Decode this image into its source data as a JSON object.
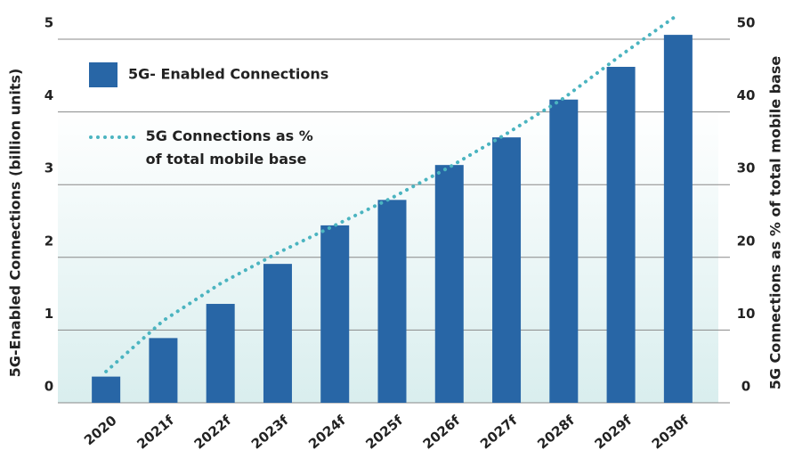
{
  "chart_data": {
    "type": "bar",
    "categories": [
      "2020",
      "2021f",
      "2022f",
      "2023f",
      "2024f",
      "2025f",
      "2026f",
      "2027f",
      "2028f",
      "2029f",
      "2030f"
    ],
    "series": [
      {
        "name": "5G- Enabled Connections",
        "type": "bar",
        "color": "#2866a6",
        "values": [
          0.36,
          0.89,
          1.36,
          1.91,
          2.44,
          2.79,
          3.27,
          3.65,
          4.17,
          4.62,
          5.06
        ]
      },
      {
        "name": "5G Connections as % of total mobile base",
        "type": "line",
        "axis": "y2",
        "color": "#4bb4c0",
        "values": [
          4.3,
          11.3,
          16.4,
          20.6,
          24.4,
          28.2,
          32.4,
          37.0,
          41.9,
          47.8,
          53.4
        ]
      }
    ],
    "y_label": "5G-Enabled Connections (billion units)",
    "y2_label": "5G Connections as % of total mobile base",
    "ylim": [
      0,
      5
    ],
    "yticks": [
      0,
      1,
      2,
      3,
      4,
      5
    ],
    "y2lim": [
      0,
      50
    ],
    "y2ticks": [
      0,
      10,
      20,
      30,
      40,
      50
    ],
    "grid": true
  }
}
